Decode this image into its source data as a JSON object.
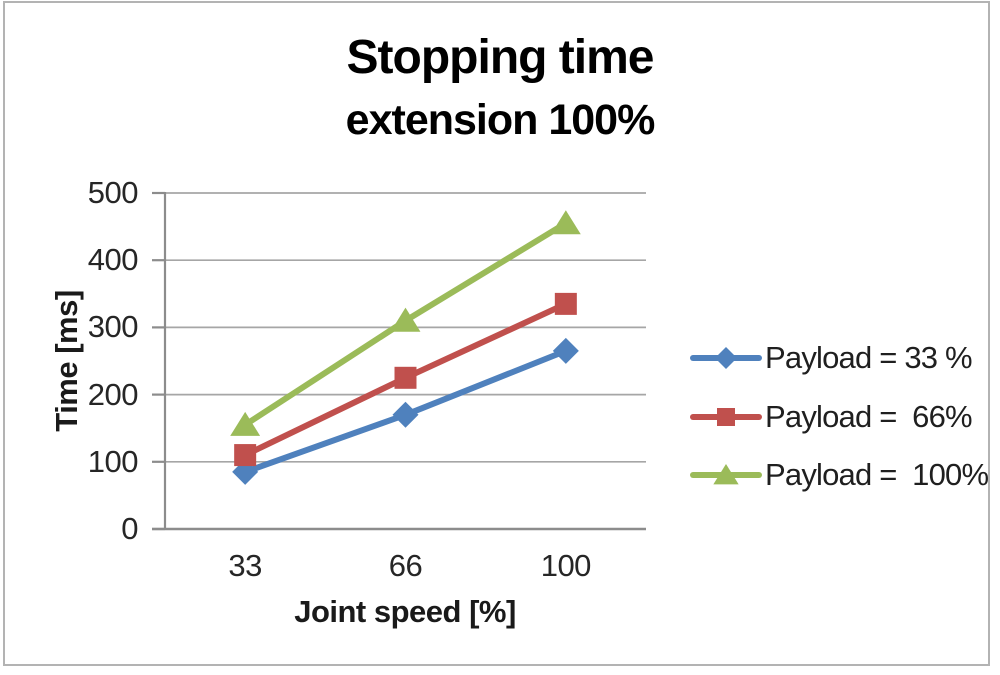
{
  "title": {
    "line1": "Stopping time",
    "line2": "extension 100%"
  },
  "chart_data": {
    "type": "line",
    "title": "Stopping time extension 100%",
    "x": [
      33,
      66,
      100
    ],
    "x_tick_labels": [
      "33",
      "66",
      "100"
    ],
    "xlabel": "Joint speed [%]",
    "ylabel": "Time [ms]",
    "ylim": [
      0,
      500
    ],
    "ytick_step": 100,
    "grid": "horizontal",
    "legend_position": "right",
    "series": [
      {
        "name": "Payload = 33 %",
        "marker": "diamond",
        "color": "#4f81bd",
        "values": [
          85,
          170,
          265
        ]
      },
      {
        "name": "Payload =  66%",
        "marker": "square",
        "color": "#c0504d",
        "values": [
          110,
          225,
          335
        ]
      },
      {
        "name": "Payload =  100%",
        "marker": "triangle",
        "color": "#9bbb59",
        "values": [
          155,
          310,
          455
        ]
      }
    ],
    "colors": {
      "gridline": "#a6a6a6",
      "axis": "#8c8c8c",
      "tick_text": "#262626",
      "frame_border": "#b3b3b3",
      "background": "#ffffff"
    }
  }
}
